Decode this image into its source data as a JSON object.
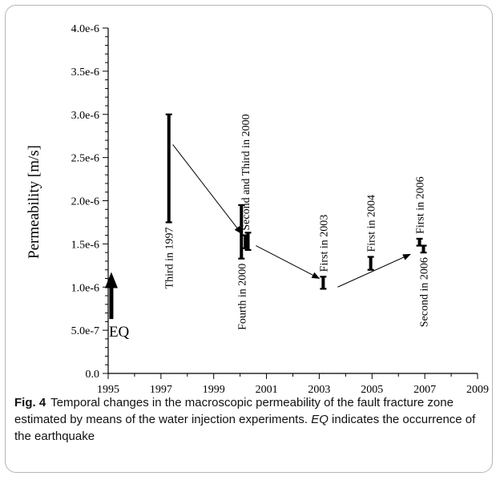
{
  "chart_data": {
    "type": "range",
    "ylabel": "Permeability [m/s]",
    "xlim": [
      1995,
      2009
    ],
    "ylim": [
      0,
      4e-06
    ],
    "x_ticks": [
      "1995",
      "1997",
      "1999",
      "2001",
      "2003",
      "2005",
      "2007",
      "2009"
    ],
    "y_ticks": [
      "0.0",
      "5.0e-7",
      "1.0e-6",
      "1.5e-6",
      "2.0e-6",
      "2.5e-6",
      "3.0e-6",
      "3.5e-6",
      "4.0e-6"
    ],
    "ranges": [
      {
        "label": "Third in 1997",
        "x": 1997.3,
        "low": 1.75e-06,
        "high": 3e-06,
        "label_pos": "below"
      },
      {
        "label": "Fourth in 2000",
        "x": 2000.05,
        "low": 1.33e-06,
        "high": 1.95e-06,
        "label_pos": "below"
      },
      {
        "label": "",
        "x": 2000.3,
        "low": 1.43e-06,
        "high": 1.63e-06,
        "label_pos": "none"
      },
      {
        "label": "Second and Third in 2000",
        "x": 2000.2,
        "low": 1.45e-06,
        "high": 1.6e-06,
        "label_pos": "above"
      },
      {
        "label": "First in 2003",
        "x": 2003.15,
        "low": 9.8e-07,
        "high": 1.12e-06,
        "label_pos": "above"
      },
      {
        "label": "First in 2004",
        "x": 2004.95,
        "low": 1.2e-06,
        "high": 1.35e-06,
        "label_pos": "above"
      },
      {
        "label": "First in 2006",
        "x": 2006.8,
        "low": 1.48e-06,
        "high": 1.56e-06,
        "label_pos": "above"
      },
      {
        "label": "Second in 2006",
        "x": 2006.95,
        "low": 1.4e-06,
        "high": 1.48e-06,
        "label_pos": "below"
      }
    ],
    "arrows": [
      {
        "from": [
          1997.45,
          2.65e-06
        ],
        "to": [
          2000.05,
          1.62e-06
        ]
      },
      {
        "from": [
          2000.6,
          1.48e-06
        ],
        "to": [
          2003.0,
          1.1e-06
        ]
      },
      {
        "from": [
          2003.7,
          1e-06
        ],
        "to": [
          2006.45,
          1.38e-06
        ]
      }
    ],
    "event": {
      "label": "EQ",
      "x": 1995.12,
      "low": 6.3e-07,
      "high": 1.1e-06
    }
  },
  "caption": {
    "label": "Fig. 4",
    "text_before": "Temporal changes in the macroscopic permeability of the fault fracture zone estimated by means of the water injection experiments. ",
    "emphasis": "EQ",
    "text_after": " indicates the occurrence of the earthquake"
  }
}
